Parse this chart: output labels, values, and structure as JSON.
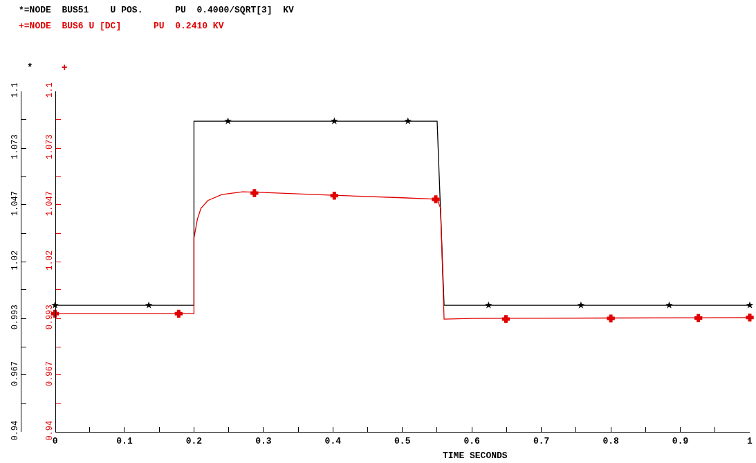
{
  "chart_data": {
    "type": "line",
    "xlabel": "TIME SECONDS",
    "annotations": [
      "*",
      "+"
    ],
    "xlim": [
      0,
      1
    ],
    "xticks": [
      0,
      {
        "value": 0.05,
        "label": null
      },
      0.1,
      {
        "value": 0.15,
        "label": null
      },
      0.2,
      {
        "value": 0.25,
        "label": null
      },
      0.3,
      {
        "value": 0.35,
        "label": null
      },
      0.4,
      {
        "value": 0.45,
        "label": null
      },
      0.5,
      {
        "value": 0.55,
        "label": null
      },
      0.6,
      {
        "value": 0.65,
        "label": null
      },
      0.7,
      {
        "value": 0.75,
        "label": null
      },
      0.8,
      {
        "value": 0.85,
        "label": null
      },
      0.9,
      {
        "value": 0.95,
        "label": null
      },
      1
    ],
    "ylim": [
      0.94,
      1.1
    ],
    "yticks": [
      0.94,
      {
        "value": 0.9533,
        "label": null
      },
      {
        "value": 0.9667,
        "label": "0.967"
      },
      {
        "value": 0.98,
        "label": null
      },
      {
        "value": 0.9933,
        "label": "0.993"
      },
      {
        "value": 1.0067,
        "label": null
      },
      1.02,
      {
        "value": 1.0333,
        "label": null
      },
      {
        "value": 1.0467,
        "label": "1.047"
      },
      {
        "value": 1.06,
        "label": null
      },
      {
        "value": 1.0733,
        "label": "1.073"
      },
      {
        "value": 1.0867,
        "label": null
      },
      1.1
    ],
    "y2lim": [
      0.94,
      1.1
    ],
    "y2ticks": [
      0.94,
      {
        "value": 0.9533,
        "label": null
      },
      {
        "value": 0.9667,
        "label": "0.967"
      },
      {
        "value": 0.98,
        "label": null
      },
      {
        "value": 0.9933,
        "label": "0.993"
      },
      {
        "value": 1.0067,
        "label": null
      },
      1.02,
      {
        "value": 1.0333,
        "label": null
      },
      {
        "value": 1.0467,
        "label": "1.047"
      },
      {
        "value": 1.06,
        "label": null
      },
      {
        "value": 1.0733,
        "label": "1.073"
      },
      {
        "value": 1.0867,
        "label": null
      },
      1.1
    ],
    "grid": false,
    "legend": false,
    "series": [
      {
        "name": "*=NODE  BUS51    U POS.      PU  0.4000/SQRT[3]  KV",
        "color": "#000000",
        "marker": "none",
        "line_style": "solid",
        "x": [
          0,
          0.2,
          0.2,
          0.55,
          0.56,
          1
        ],
        "values": [
          0.9995,
          0.9995,
          1.086,
          1.086,
          0.9995,
          0.9995
        ]
      },
      {
        "name": "+=NODE  BUS6 U [DC]      PU  0.2410 KV",
        "color": "#e00000",
        "axis": "y2",
        "marker": "none",
        "line_style": "solid",
        "x": [
          0,
          0.2,
          0.2,
          0.205,
          0.21,
          0.22,
          0.24,
          0.27,
          0.3,
          0.4,
          0.5,
          0.55,
          0.555,
          0.56,
          0.6,
          0.8,
          1
        ],
        "values": [
          0.9955,
          0.9955,
          1.031,
          1.04,
          1.045,
          1.0487,
          1.0515,
          1.0528,
          1.0525,
          1.0512,
          1.05,
          1.0493,
          1.045,
          0.993,
          0.9933,
          0.9935,
          0.9937
        ]
      },
      {
        "type": "scatter",
        "color": "#000000",
        "marker": "star",
        "x": [
          0,
          0.135,
          0.249,
          0.402,
          0.508,
          0.624,
          0.757,
          0.884,
          1
        ],
        "values": [
          0.9995,
          0.9995,
          1.086,
          1.086,
          1.086,
          0.9995,
          0.9995,
          0.9995,
          0.9995
        ]
      },
      {
        "type": "scatter",
        "color": "#e00000",
        "axis": "y2",
        "marker": "cross",
        "x": [
          0,
          0.178,
          0.287,
          0.402,
          0.548,
          0.649,
          0.8,
          0.926,
          1
        ],
        "values": [
          0.9955,
          0.9955,
          1.0522,
          1.051,
          1.0493,
          0.993,
          0.9933,
          0.9935,
          0.9937
        ]
      }
    ]
  }
}
